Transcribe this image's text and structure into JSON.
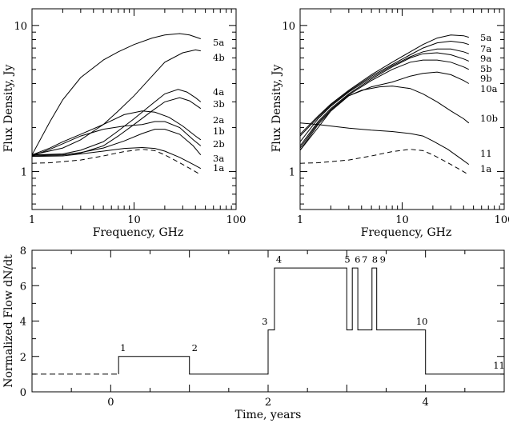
{
  "chart_data": [
    {
      "id": "left",
      "type": "line",
      "scale": "log-log",
      "xlabel": "Frequency, GHz",
      "ylabel": "Flux Density, Jy",
      "xlim": [
        1,
        100
      ],
      "ylim": [
        0.55,
        13
      ],
      "x_ticks": [
        {
          "v": 1,
          "label": "1"
        },
        {
          "v": 10,
          "label": "10"
        },
        {
          "v": 100,
          "label": "100"
        }
      ],
      "y_ticks": [
        {
          "v": 1,
          "label": "1"
        },
        {
          "v": 10,
          "label": "10"
        }
      ],
      "series": [
        {
          "name": "5a",
          "dash": false,
          "x": [
            1,
            1.5,
            2,
            3,
            5,
            7,
            10,
            15,
            20,
            28,
            35,
            45
          ],
          "y": [
            1.3,
            2.2,
            3.1,
            4.4,
            5.8,
            6.6,
            7.4,
            8.2,
            8.6,
            8.8,
            8.6,
            8.1
          ]
        },
        {
          "name": "4b",
          "dash": false,
          "x": [
            1,
            2,
            3,
            5,
            7,
            10,
            15,
            20,
            30,
            40,
            45
          ],
          "y": [
            1.3,
            1.45,
            1.65,
            2.1,
            2.6,
            3.3,
            4.5,
            5.6,
            6.5,
            6.8,
            6.7
          ]
        },
        {
          "name": "4a",
          "dash": false,
          "x": [
            1,
            2,
            3,
            5,
            7,
            10,
            15,
            20,
            27,
            33,
            40,
            45
          ],
          "y": [
            1.3,
            1.32,
            1.4,
            1.6,
            1.9,
            2.3,
            2.9,
            3.4,
            3.65,
            3.5,
            3.2,
            3.0
          ]
        },
        {
          "name": "3b",
          "dash": false,
          "x": [
            1,
            2,
            3,
            5,
            7,
            10,
            15,
            20,
            28,
            35,
            45
          ],
          "y": [
            1.3,
            1.3,
            1.34,
            1.5,
            1.75,
            2.1,
            2.6,
            3.0,
            3.2,
            3.05,
            2.7
          ]
        },
        {
          "name": "2a",
          "dash": false,
          "x": [
            1,
            1.5,
            2,
            3,
            5,
            8,
            12,
            16,
            22,
            30,
            40,
            45
          ],
          "y": [
            1.3,
            1.45,
            1.6,
            1.8,
            2.1,
            2.45,
            2.6,
            2.55,
            2.35,
            2.05,
            1.75,
            1.65
          ]
        },
        {
          "name": "1b",
          "dash": false,
          "x": [
            1,
            1.5,
            2,
            3,
            5,
            8,
            12,
            16,
            20,
            28,
            38,
            45
          ],
          "y": [
            1.28,
            1.42,
            1.55,
            1.75,
            1.95,
            2.05,
            2.1,
            2.2,
            2.2,
            2.0,
            1.65,
            1.5
          ]
        },
        {
          "name": "2b",
          "dash": false,
          "x": [
            1,
            2,
            3,
            5,
            8,
            12,
            16,
            20,
            28,
            38,
            45
          ],
          "y": [
            1.28,
            1.3,
            1.35,
            1.45,
            1.62,
            1.82,
            1.95,
            1.95,
            1.8,
            1.5,
            1.3
          ]
        },
        {
          "name": "3a",
          "dash": false,
          "x": [
            1,
            2,
            3,
            5,
            8,
            12,
            16,
            20,
            28,
            38,
            45
          ],
          "y": [
            1.27,
            1.28,
            1.32,
            1.38,
            1.44,
            1.46,
            1.44,
            1.38,
            1.25,
            1.12,
            1.05
          ]
        },
        {
          "name": "1a",
          "dash": true,
          "x": [
            1,
            1.5,
            2,
            3,
            5,
            8,
            12,
            16,
            20,
            28,
            38,
            45
          ],
          "y": [
            1.14,
            1.15,
            1.17,
            1.2,
            1.28,
            1.37,
            1.42,
            1.39,
            1.3,
            1.15,
            1.02,
            0.95
          ]
        }
      ]
    },
    {
      "id": "right",
      "type": "line",
      "scale": "log-log",
      "xlabel": "Frequency, GHz",
      "ylabel": "Flux Density, Jy",
      "xlim": [
        1,
        100
      ],
      "ylim": [
        0.55,
        13
      ],
      "x_ticks": [
        {
          "v": 1,
          "label": "1"
        },
        {
          "v": 10,
          "label": "10"
        },
        {
          "v": 100,
          "label": "100"
        }
      ],
      "y_ticks": [
        {
          "v": 1,
          "label": "1"
        },
        {
          "v": 10,
          "label": "10"
        }
      ],
      "series": [
        {
          "name": "5a",
          "dash": false,
          "x": [
            1,
            1.5,
            2,
            3,
            5,
            8,
            12,
            16,
            22,
            30,
            40,
            45
          ],
          "y": [
            1.8,
            2.4,
            2.9,
            3.6,
            4.6,
            5.6,
            6.6,
            7.4,
            8.2,
            8.6,
            8.5,
            8.3
          ]
        },
        {
          "name": "7a",
          "dash": false,
          "x": [
            1,
            1.5,
            2,
            3,
            5,
            8,
            12,
            16,
            22,
            30,
            40,
            45
          ],
          "y": [
            1.75,
            2.35,
            2.85,
            3.55,
            4.5,
            5.4,
            6.3,
            7.0,
            7.6,
            7.8,
            7.6,
            7.4
          ]
        },
        {
          "name": "9a",
          "dash": false,
          "x": [
            1,
            1.5,
            2,
            3,
            5,
            8,
            12,
            16,
            22,
            30,
            40,
            45
          ],
          "y": [
            1.6,
            2.3,
            2.8,
            3.5,
            4.4,
            5.3,
            6.1,
            6.6,
            6.9,
            6.9,
            6.6,
            6.4
          ]
        },
        {
          "name": "5b",
          "dash": false,
          "x": [
            1,
            1.5,
            2,
            3,
            5,
            8,
            12,
            16,
            22,
            30,
            40,
            45
          ],
          "y": [
            1.5,
            2.2,
            2.7,
            3.4,
            4.3,
            5.2,
            6.0,
            6.4,
            6.5,
            6.3,
            5.9,
            5.7
          ]
        },
        {
          "name": "9b",
          "dash": false,
          "x": [
            1,
            1.5,
            2,
            3,
            5,
            8,
            12,
            16,
            22,
            30,
            40,
            45
          ],
          "y": [
            1.45,
            2.15,
            2.65,
            3.35,
            4.2,
            5.0,
            5.6,
            5.8,
            5.8,
            5.6,
            5.2,
            5.0
          ]
        },
        {
          "name": "10a",
          "dash": false,
          "x": [
            1,
            1.5,
            2,
            3,
            5,
            8,
            12,
            16,
            22,
            30,
            40,
            45
          ],
          "y": [
            1.4,
            2.1,
            2.6,
            3.3,
            3.8,
            4.1,
            4.5,
            4.7,
            4.8,
            4.6,
            4.2,
            4.0
          ]
        },
        {
          "name": "10b",
          "dash": false,
          "x": [
            1,
            1.5,
            2,
            3,
            4,
            6,
            8,
            12,
            16,
            22,
            30,
            40,
            45
          ],
          "y": [
            1.4,
            2.0,
            2.6,
            3.3,
            3.6,
            3.8,
            3.85,
            3.7,
            3.4,
            3.0,
            2.6,
            2.3,
            2.15
          ]
        },
        {
          "name": "11",
          "dash": false,
          "x": [
            1,
            1.5,
            2,
            3,
            5,
            8,
            12,
            16,
            20,
            28,
            38,
            45
          ],
          "y": [
            2.15,
            2.1,
            2.05,
            1.98,
            1.92,
            1.88,
            1.82,
            1.75,
            1.62,
            1.42,
            1.22,
            1.12
          ]
        },
        {
          "name": "1a",
          "dash": true,
          "x": [
            1,
            1.5,
            2,
            3,
            5,
            8,
            12,
            16,
            20,
            28,
            38,
            45
          ],
          "y": [
            1.14,
            1.15,
            1.17,
            1.2,
            1.28,
            1.37,
            1.42,
            1.39,
            1.3,
            1.15,
            1.02,
            0.95
          ]
        }
      ]
    },
    {
      "id": "bottom",
      "type": "line",
      "xlabel": "Time, years",
      "ylabel": "Normalized Flow dN/dt",
      "xlim": [
        -1,
        5
      ],
      "ylim": [
        0,
        8
      ],
      "x_ticks": [
        {
          "v": 0,
          "label": "0"
        },
        {
          "v": 2,
          "label": "2"
        },
        {
          "v": 4,
          "label": "4"
        }
      ],
      "y_ticks": [
        {
          "v": 0,
          "label": "0"
        },
        {
          "v": 2,
          "label": "2"
        },
        {
          "v": 4,
          "label": "4"
        },
        {
          "v": 6,
          "label": "6"
        },
        {
          "v": 8,
          "label": "8"
        }
      ],
      "dashed_segment": {
        "x": [
          -1,
          0.1
        ],
        "y": [
          1,
          1
        ]
      },
      "step_series": {
        "x": [
          0.1,
          0.1,
          1.0,
          1.0,
          2.0,
          2.0,
          2.08,
          2.08,
          3.0,
          3.0,
          3.07,
          3.07,
          3.14,
          3.14,
          3.22,
          3.22,
          3.32,
          3.32,
          3.38,
          3.38,
          3.43,
          3.43,
          4.0,
          4.0,
          5.0
        ],
        "y": [
          1,
          2,
          2,
          1,
          1,
          3.5,
          3.5,
          7,
          7,
          3.5,
          3.5,
          7,
          7,
          3.5,
          3.5,
          3.5,
          3.5,
          7,
          7,
          3.5,
          3.5,
          3.5,
          3.5,
          1,
          1
        ]
      },
      "annotations": [
        {
          "text": "1",
          "x": 0.12,
          "y": 2.3
        },
        {
          "text": "2",
          "x": 1.03,
          "y": 2.3
        },
        {
          "text": "3",
          "x": 1.92,
          "y": 3.8
        },
        {
          "text": "4",
          "x": 2.1,
          "y": 7.3
        },
        {
          "text": "5",
          "x": 2.97,
          "y": 7.3
        },
        {
          "text": "6",
          "x": 3.1,
          "y": 7.3
        },
        {
          "text": "7",
          "x": 3.19,
          "y": 7.3
        },
        {
          "text": "8",
          "x": 3.32,
          "y": 7.3
        },
        {
          "text": "9",
          "x": 3.42,
          "y": 7.3
        },
        {
          "text": "10",
          "x": 3.88,
          "y": 3.8
        },
        {
          "text": "11",
          "x": 4.86,
          "y": 1.3
        }
      ]
    }
  ]
}
